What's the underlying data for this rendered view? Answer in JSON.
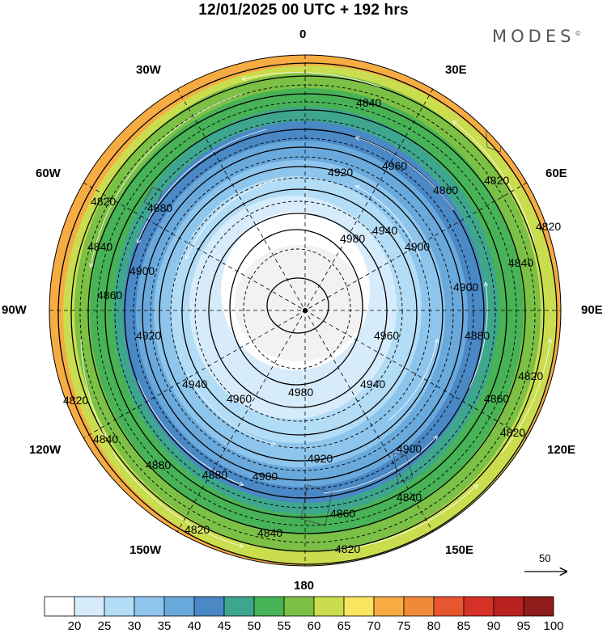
{
  "header": {
    "title": "12/01/2025  00 UTC  + 192 hrs",
    "brand": "MODES",
    "brand_mark": "©"
  },
  "map": {
    "projection": "south-polar-stereographic",
    "field_shading": "wind speed",
    "contour_field": "geopotential height",
    "longitude_labels": {
      "top": "0",
      "top_left": "30W",
      "top_right": "30E",
      "upper_left": "60W",
      "upper_right": "60E",
      "left": "90W",
      "right": "90E",
      "lower_left": "120W",
      "lower_right": "120E",
      "bottom_left": "150W",
      "bottom_right": "150E",
      "bottom": "180"
    },
    "contour_labels": [
      "4820",
      "4840",
      "4860",
      "4880",
      "4900",
      "4920",
      "4940",
      "4960",
      "4980"
    ],
    "reference_vector": {
      "label": "50"
    },
    "colors": {
      "c20": "#ffffff",
      "c25": "#d7ecfa",
      "c30": "#b3dcf6",
      "c35": "#8ec5ec",
      "c40": "#6aa9dc",
      "c45": "#4a88c6",
      "c50": "#3fa68e",
      "c55": "#48b256",
      "c60": "#7cc046",
      "c65": "#c9dd4f",
      "c70": "#fbe460",
      "c75": "#f6ac43",
      "c80": "#f08a39",
      "c85": "#e8552f",
      "c90": "#d63126",
      "c95": "#b8221f",
      "c100": "#8e1c1a"
    }
  },
  "colorbar": {
    "ticks": [
      "20",
      "25",
      "30",
      "35",
      "40",
      "45",
      "50",
      "55",
      "60",
      "65",
      "70",
      "75",
      "80",
      "85",
      "90",
      "95",
      "100"
    ],
    "colors": [
      "#ffffff",
      "#d7ecfa",
      "#b3dcf6",
      "#8ec5ec",
      "#6aa9dc",
      "#4a88c6",
      "#3fa68e",
      "#48b256",
      "#7cc046",
      "#c9dd4f",
      "#fbe460",
      "#f6ac43",
      "#f08a39",
      "#e8552f",
      "#d63126",
      "#b8221f",
      "#8e1c1a"
    ]
  }
}
